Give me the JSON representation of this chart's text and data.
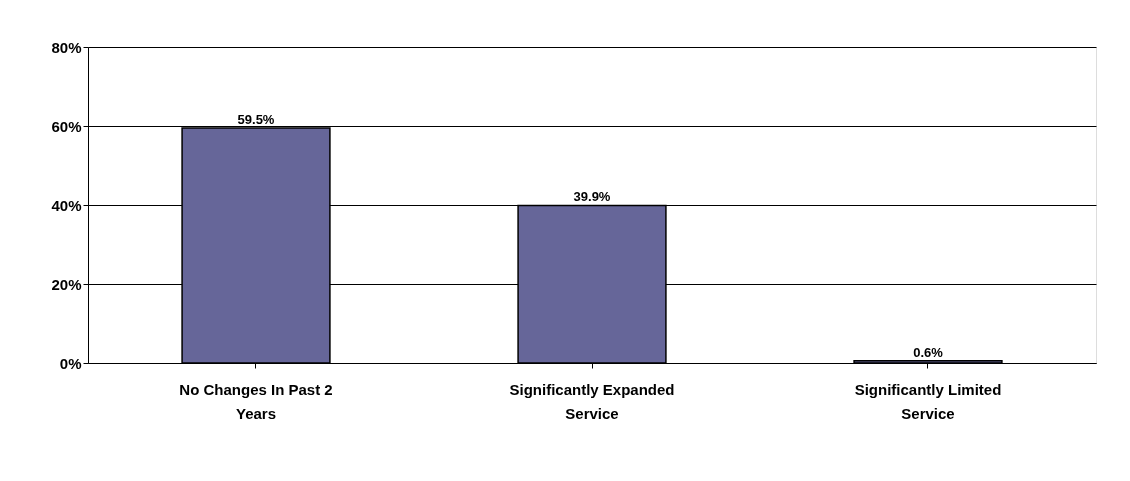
{
  "chart_data": {
    "type": "bar",
    "categories": [
      "No Changes In Past 2 Years",
      "Significantly Expanded Service",
      "Significantly Limited Service"
    ],
    "values": [
      59.5,
      39.9,
      0.6
    ],
    "value_labels": [
      "59.5%",
      "39.9%",
      "0.6%"
    ],
    "color": "#666699",
    "ylim": [
      0,
      80
    ],
    "yticks": [
      {
        "value": 0,
        "label": "0%"
      },
      {
        "value": 20,
        "label": "20%"
      },
      {
        "value": 40,
        "label": "40%"
      },
      {
        "value": 60,
        "label": "60%"
      },
      {
        "value": 80,
        "label": "80%"
      }
    ],
    "grid": "y"
  }
}
